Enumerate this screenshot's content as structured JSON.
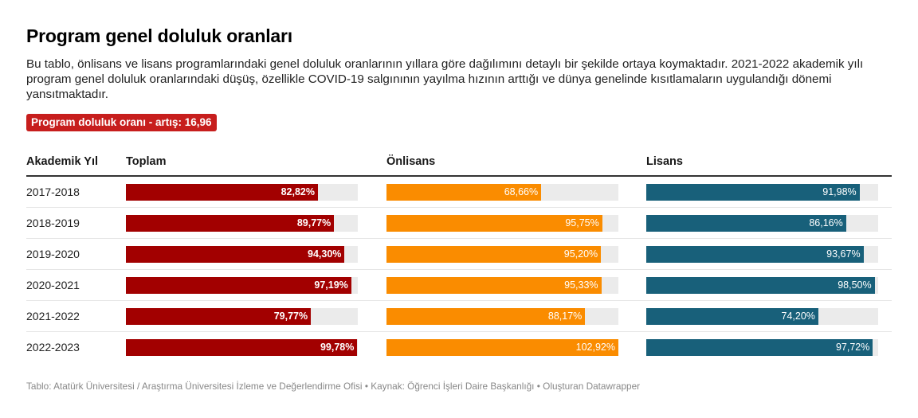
{
  "header": {
    "title": "Program genel doluluk oranları",
    "description": "Bu tablo, önlisans ve lisans programlarındaki genel doluluk oranlarının yıllara göre dağılımını detaylı bir şekilde ortaya koymaktadır. 2021-2022 akademik yılı program genel doluluk oranlarındaki düşüş, özellikle COVID-19 salgınının yayılma hızının arttığı ve dünya genelinde kısıtlamaların uygulandığı dönemi yansıtmaktadır.",
    "badge": "Program doluluk oranı - artış: 16,96"
  },
  "colors": {
    "toplam": "#a20000",
    "onlisans": "#fa8c00",
    "lisans": "#18607a",
    "badge": "#c71e1d",
    "bar_background": "#ebebeb"
  },
  "chart_data": {
    "type": "table",
    "title": "Program genel doluluk oranları",
    "columns": [
      "Akademik Yıl",
      "Toplam",
      "Önlisans",
      "Lisans"
    ],
    "categories": [
      "2017-2018",
      "2018-2019",
      "2019-2020",
      "2020-2021",
      "2021-2022",
      "2022-2023"
    ],
    "series": [
      {
        "name": "Toplam",
        "key": "toplam",
        "max": 100,
        "values": [
          82.82,
          89.77,
          94.3,
          97.19,
          79.77,
          99.78
        ],
        "labels": [
          "82,82%",
          "89,77%",
          "94,30%",
          "97,19%",
          "79,77%",
          "99,78%"
        ]
      },
      {
        "name": "Önlisans",
        "key": "onlisans",
        "max": 102.92,
        "values": [
          68.66,
          95.75,
          95.2,
          95.33,
          88.17,
          102.92
        ],
        "labels": [
          "68,66%",
          "95,75%",
          "95,20%",
          "95,33%",
          "88,17%",
          "102,92%"
        ]
      },
      {
        "name": "Lisans",
        "key": "lisans",
        "max": 100,
        "values": [
          91.98,
          86.16,
          93.67,
          98.5,
          74.2,
          97.72
        ],
        "labels": [
          "91,98%",
          "86,16%",
          "93,67%",
          "98,50%",
          "74,20%",
          "97,72%"
        ]
      }
    ]
  },
  "footer": {
    "text": "Tablo: Atatürk Üniversitesi / Araştırma Üniversitesi İzleme ve Değerlendirme Ofisi • Kaynak: Öğrenci İşleri Daire Başkanlığı • Oluşturan Datawrapper"
  }
}
